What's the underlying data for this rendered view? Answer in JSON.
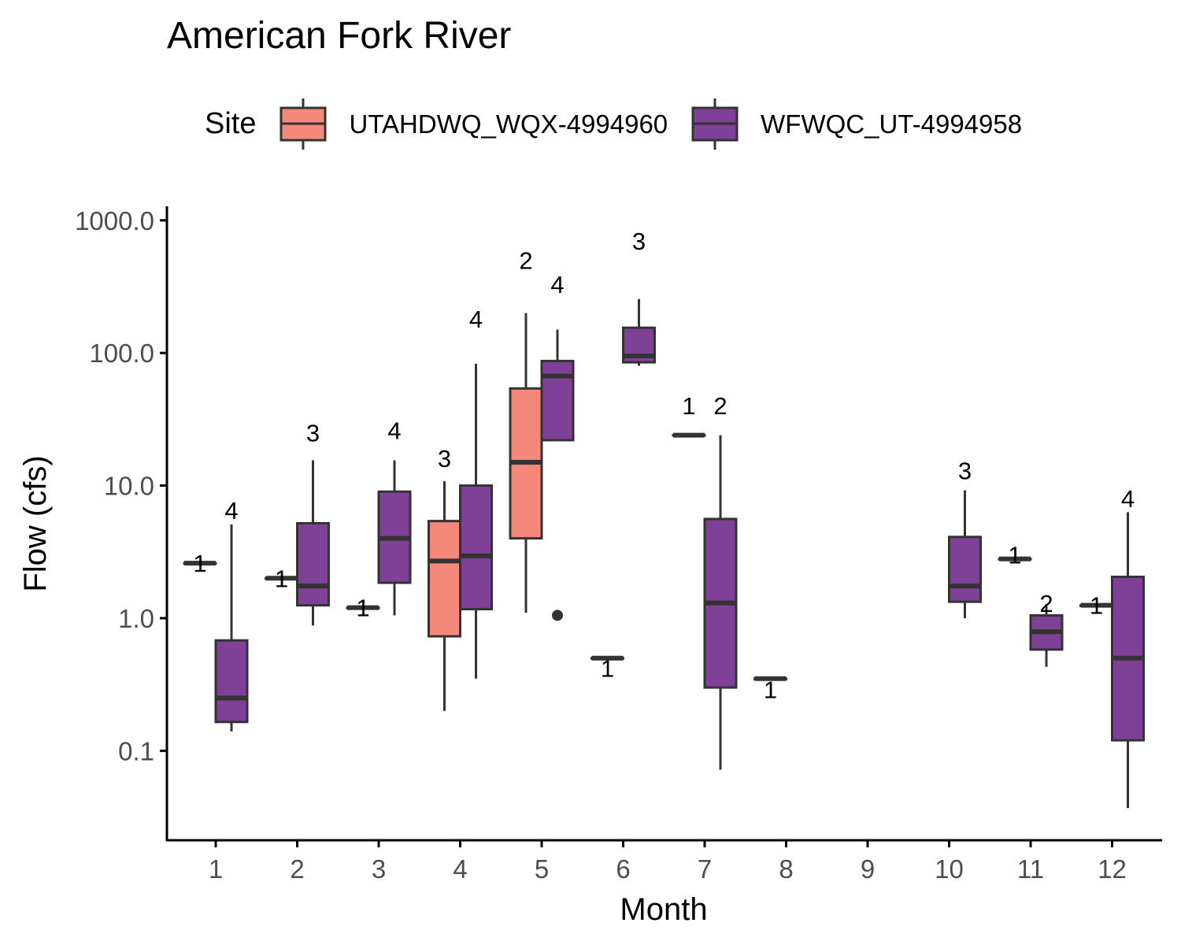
{
  "chart_data": {
    "type": "box",
    "title": "American Fork River",
    "xlabel": "Month",
    "ylabel": "Flow (cfs)",
    "y_scale": "log10",
    "ylim": [
      0.02,
      1400
    ],
    "y_ticks": [
      0.1,
      1,
      10,
      100,
      1000
    ],
    "y_tick_labels": [
      "0.1",
      "1.0",
      "10.0",
      "100.0",
      "1000.0"
    ],
    "categories": [
      "1",
      "2",
      "3",
      "4",
      "5",
      "6",
      "7",
      "8",
      "9",
      "10",
      "11",
      "12"
    ],
    "legend": {
      "title": "Site",
      "position": "top"
    },
    "series": [
      {
        "name": "UTAHDWQ_WQX-4994960",
        "color": "#F4897B",
        "boxes": [
          {
            "month": "1",
            "n": 1,
            "min": 2.6,
            "q1": 2.6,
            "median": 2.6,
            "q3": 2.6,
            "max": 2.6
          },
          {
            "month": "2",
            "n": 1,
            "min": 2.0,
            "q1": 2.0,
            "median": 2.0,
            "q3": 2.0,
            "max": 2.0
          },
          {
            "month": "3",
            "n": 1,
            "min": 1.2,
            "q1": 1.2,
            "median": 1.2,
            "q3": 1.2,
            "max": 1.2
          },
          {
            "month": "4",
            "n": 3,
            "min": 0.2,
            "q1": 0.73,
            "median": 2.7,
            "q3": 5.4,
            "max": 10.8
          },
          {
            "month": "5",
            "n": 2,
            "min": 1.1,
            "q1": 4.0,
            "median": 15,
            "q3": 54,
            "max": 200
          },
          {
            "month": "6",
            "n": 1,
            "min": 0.5,
            "q1": 0.5,
            "median": 0.5,
            "q3": 0.5,
            "max": 0.5
          },
          {
            "month": "7",
            "n": 1,
            "min": 24,
            "q1": 24,
            "median": 24,
            "q3": 24,
            "max": 24
          },
          {
            "month": "8",
            "n": 1,
            "min": 0.35,
            "q1": 0.35,
            "median": 0.35,
            "q3": 0.35,
            "max": 0.35
          },
          {
            "month": "11",
            "n": 1,
            "min": 2.8,
            "q1": 2.8,
            "median": 2.8,
            "q3": 2.8,
            "max": 2.8
          },
          {
            "month": "12",
            "n": 1,
            "min": 1.25,
            "q1": 1.25,
            "median": 1.25,
            "q3": 1.25,
            "max": 1.25
          }
        ]
      },
      {
        "name": "WFWQC_UT-4994958",
        "color": "#7F4197",
        "boxes": [
          {
            "month": "1",
            "n": 4,
            "min": 0.14,
            "q1": 0.165,
            "median": 0.25,
            "q3": 0.68,
            "max": 5.1
          },
          {
            "month": "2",
            "n": 3,
            "min": 0.88,
            "q1": 1.25,
            "median": 1.75,
            "q3": 5.2,
            "max": 15.5
          },
          {
            "month": "3",
            "n": 4,
            "min": 1.05,
            "q1": 1.85,
            "median": 4.0,
            "q3": 9.0,
            "max": 15.5
          },
          {
            "month": "4",
            "n": 4,
            "min": 0.35,
            "q1": 1.17,
            "median": 2.95,
            "q3": 10.0,
            "max": 83
          },
          {
            "month": "5",
            "n": 4,
            "min": 22,
            "q1": 22,
            "median": 67,
            "q3": 87,
            "max": 150,
            "outliers": [
              1.05
            ]
          },
          {
            "month": "6",
            "n": 3,
            "min": 80,
            "q1": 85,
            "median": 95,
            "q3": 155,
            "max": 255
          },
          {
            "month": "7",
            "n": 2,
            "min": 0.072,
            "q1": 0.3,
            "median": 1.3,
            "q3": 5.6,
            "max": 24
          },
          {
            "month": "10",
            "n": 3,
            "min": 1.0,
            "q1": 1.33,
            "median": 1.75,
            "q3": 4.1,
            "max": 9.2
          },
          {
            "month": "11",
            "n": 2,
            "min": 0.43,
            "q1": 0.58,
            "median": 0.79,
            "q3": 1.05,
            "max": 1.28
          },
          {
            "month": "12",
            "n": 4,
            "min": 0.037,
            "q1": 0.12,
            "median": 0.5,
            "q3": 2.05,
            "max": 6.3
          }
        ]
      }
    ],
    "count_labels": [
      {
        "month": "1",
        "series": 0,
        "text": "1",
        "y": 2.6
      },
      {
        "month": "1",
        "series": 1,
        "text": "4",
        "y": 6.5
      },
      {
        "month": "2",
        "series": 0,
        "text": "1",
        "y": 2.0
      },
      {
        "month": "2",
        "series": 1,
        "text": "3",
        "y": 25
      },
      {
        "month": "3",
        "series": 0,
        "text": "1",
        "y": 1.2
      },
      {
        "month": "3",
        "series": 1,
        "text": "4",
        "y": 26
      },
      {
        "month": "4",
        "series": 0,
        "text": "3",
        "y": 16
      },
      {
        "month": "4",
        "series": 1,
        "text": "4",
        "y": 180
      },
      {
        "month": "5",
        "series": 0,
        "text": "2",
        "y": 500
      },
      {
        "month": "5",
        "series": 1,
        "text": "4",
        "y": 330
      },
      {
        "month": "6",
        "series": 0,
        "text": "1",
        "y": 0.42
      },
      {
        "month": "6",
        "series": 1,
        "text": "3",
        "y": 700
      },
      {
        "month": "7",
        "series": 0,
        "text": "1",
        "y": 40
      },
      {
        "month": "7",
        "series": 1,
        "text": "2",
        "y": 40
      },
      {
        "month": "8",
        "series": 0,
        "text": "1",
        "y": 0.29
      },
      {
        "month": "10",
        "series": 1,
        "text": "3",
        "y": 13
      },
      {
        "month": "11",
        "series": 0,
        "text": "1",
        "y": 3.0
      },
      {
        "month": "11",
        "series": 1,
        "text": "2",
        "y": 1.3
      },
      {
        "month": "12",
        "series": 0,
        "text": "1",
        "y": 1.25
      },
      {
        "month": "12",
        "series": 1,
        "text": "4",
        "y": 8.0
      }
    ]
  }
}
